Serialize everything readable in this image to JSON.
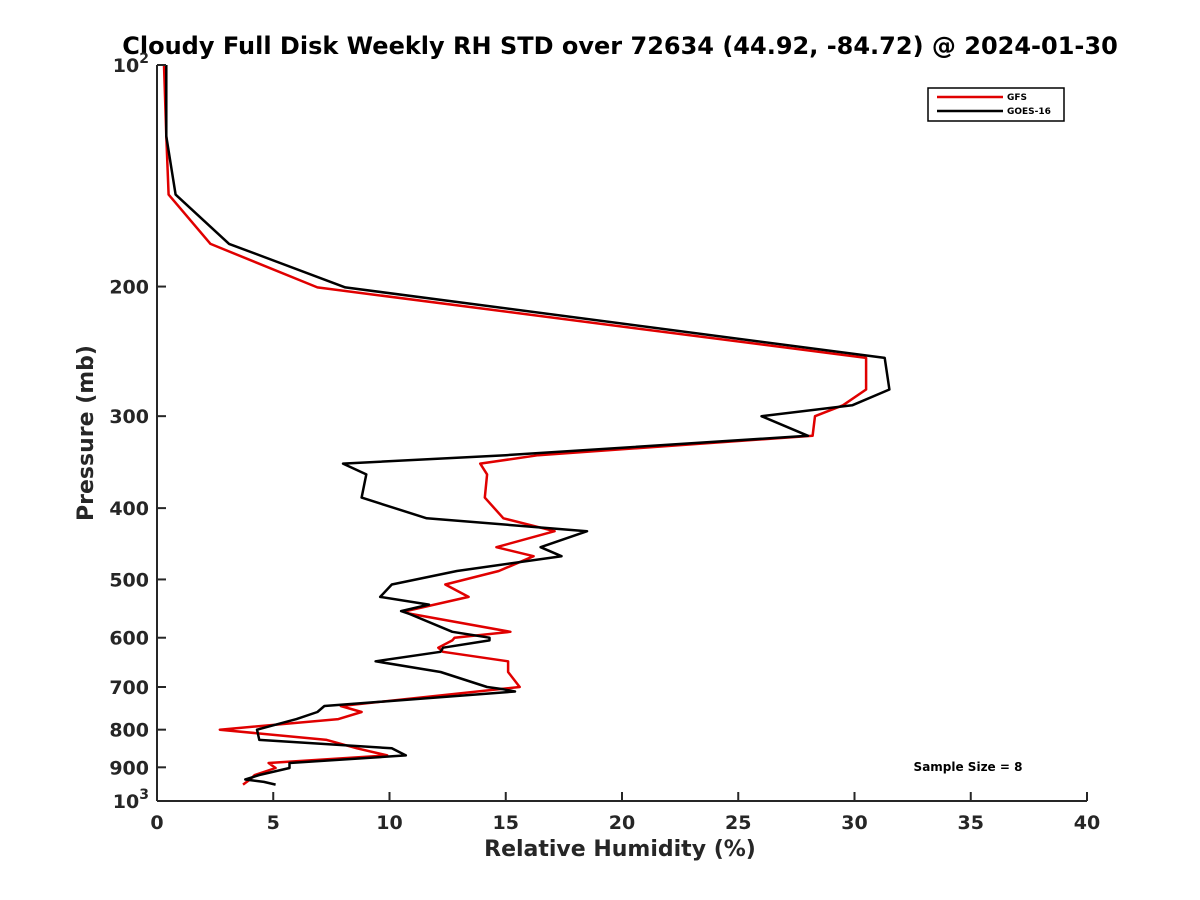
{
  "chart_data": {
    "type": "line",
    "title": "Cloudy Full Disk Weekly RH STD over 72634 (44.92, -84.72) @ 2024-01-30",
    "xlabel": "Relative Humidity (%)",
    "ylabel": "Pressure (mb)",
    "xlim": [
      0,
      40
    ],
    "ylim": [
      100,
      1000
    ],
    "yscale": "log",
    "y_reversed": true,
    "x_ticks": [
      "0",
      "5",
      "10",
      "15",
      "20",
      "25",
      "30",
      "35",
      "40"
    ],
    "y_ticks": [
      {
        "value": 100,
        "base": "10",
        "exp": "2"
      },
      {
        "value": 200,
        "label": "200"
      },
      {
        "value": 300,
        "label": "300"
      },
      {
        "value": 400,
        "label": "400"
      },
      {
        "value": 500,
        "label": "500"
      },
      {
        "value": 600,
        "label": "600"
      },
      {
        "value": 700,
        "label": "700"
      },
      {
        "value": 800,
        "label": "800"
      },
      {
        "value": 900,
        "label": "900"
      },
      {
        "value": 1000,
        "base": "10",
        "exp": "3"
      }
    ],
    "grid": false,
    "legend_position": "top-right",
    "annotation": "Sample Size = 8",
    "series": [
      {
        "name": "GFS",
        "color": "#e00000",
        "points": [
          [
            0.3,
            100
          ],
          [
            0.4,
            125
          ],
          [
            0.5,
            150
          ],
          [
            2.3,
            175
          ],
          [
            6.9,
            200.5
          ],
          [
            30.5,
            250
          ],
          [
            30.5,
            276
          ],
          [
            29.5,
            290
          ],
          [
            28.3,
            300
          ],
          [
            28.2,
            319
          ],
          [
            16.4,
            339
          ],
          [
            13.9,
            348
          ],
          [
            14.2,
            360
          ],
          [
            14.1,
            387
          ],
          [
            14.9,
            413
          ],
          [
            17.1,
            430
          ],
          [
            14.6,
            452
          ],
          [
            16.2,
            465
          ],
          [
            14.7,
            487
          ],
          [
            12.4,
            508
          ],
          [
            13.4,
            528
          ],
          [
            10.7,
            552
          ],
          [
            10.8,
            556
          ],
          [
            15.2,
            589
          ],
          [
            12.8,
            600
          ],
          [
            12.7,
            605
          ],
          [
            12.1,
            619
          ],
          [
            12.3,
            627
          ],
          [
            15.1,
            646
          ],
          [
            15.1,
            668
          ],
          [
            15.6,
            700
          ],
          [
            7.9,
            743
          ],
          [
            8.8,
            757
          ],
          [
            7.8,
            774
          ],
          [
            2.7,
            800
          ],
          [
            7.3,
            826
          ],
          [
            8.6,
            848
          ],
          [
            9.9,
            867
          ],
          [
            4.8,
            888
          ],
          [
            5.1,
            902
          ],
          [
            4.2,
            922
          ],
          [
            4.0,
            935
          ],
          [
            3.7,
            950
          ]
        ]
      },
      {
        "name": "GOES-16",
        "color": "#000000",
        "points": [
          [
            0.4,
            100
          ],
          [
            0.4,
            125
          ],
          [
            0.8,
            150
          ],
          [
            3.1,
            175
          ],
          [
            8.1,
            200.5
          ],
          [
            31.3,
            250
          ],
          [
            31.5,
            276
          ],
          [
            29.9,
            290
          ],
          [
            26.0,
            300
          ],
          [
            28.0,
            319
          ],
          [
            15.0,
            339
          ],
          [
            8.0,
            348
          ],
          [
            9.0,
            360
          ],
          [
            8.8,
            387
          ],
          [
            11.6,
            413
          ],
          [
            18.5,
            430
          ],
          [
            16.5,
            452
          ],
          [
            17.4,
            465
          ],
          [
            12.9,
            487
          ],
          [
            10.1,
            508
          ],
          [
            9.6,
            528
          ],
          [
            11.7,
            541
          ],
          [
            10.5,
            552
          ],
          [
            10.8,
            556
          ],
          [
            12.7,
            589
          ],
          [
            14.3,
            600
          ],
          [
            14.3,
            605
          ],
          [
            12.3,
            619
          ],
          [
            12.2,
            627
          ],
          [
            9.4,
            646
          ],
          [
            12.2,
            668
          ],
          [
            14.2,
            700
          ],
          [
            14.9,
            705
          ],
          [
            15.4,
            710
          ],
          [
            7.2,
            743
          ],
          [
            6.9,
            757
          ],
          [
            6.0,
            774
          ],
          [
            4.3,
            800
          ],
          [
            4.4,
            826
          ],
          [
            10.1,
            848
          ],
          [
            10.7,
            867
          ],
          [
            5.7,
            888
          ],
          [
            5.7,
            902
          ],
          [
            4.4,
            922
          ],
          [
            3.8,
            935
          ],
          [
            4.6,
            942
          ],
          [
            5.1,
            950
          ]
        ]
      }
    ]
  }
}
